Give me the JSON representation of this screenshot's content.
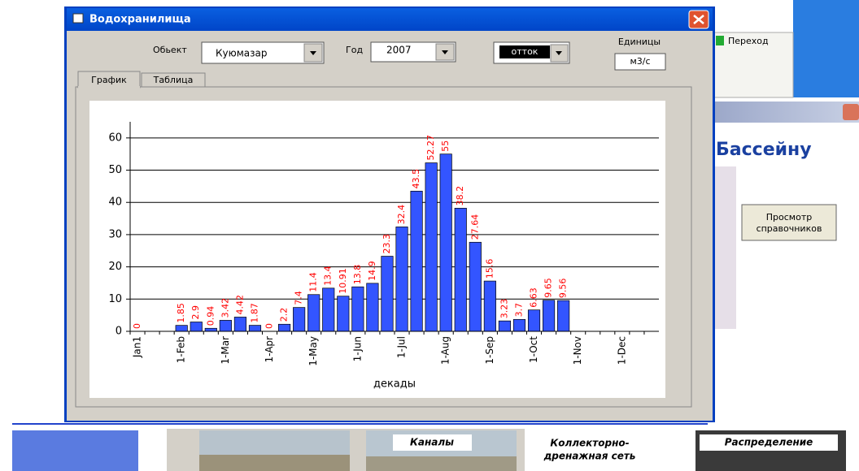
{
  "window": {
    "title": "Водохранилища",
    "object_label": "Обьект",
    "object_value": "Куюмазар",
    "year_label": "Год",
    "year_value": "2007",
    "mode_value": "отток",
    "units_label": "Единицы",
    "units_value": "м3/с",
    "tabs": [
      "График",
      "Таблица"
    ]
  },
  "background": {
    "goto_button": "Переход",
    "basin_heading": "Бассейну",
    "reference_button": [
      "Просмотр",
      "справочников"
    ],
    "canals_tile": "Каналы",
    "drainage_tile": [
      "Коллекторно-",
      "дренажная сеть"
    ],
    "distribution_tile": "Распределение"
  },
  "chart_data": {
    "type": "bar",
    "xlabel": "декады",
    "categories": [
      "Jan1",
      null,
      null,
      "1-Feb",
      null,
      null,
      "1-Mar",
      null,
      null,
      "1-Apr",
      null,
      null,
      "1-May",
      null,
      null,
      "1-Jun",
      null,
      null,
      "1-Jul",
      null,
      null,
      "1-Aug",
      null,
      null,
      "1-Sep",
      null,
      null,
      "1-Oct",
      null,
      null,
      "1-Nov",
      null,
      null,
      "1-Dec",
      null,
      null
    ],
    "values": [
      0,
      null,
      null,
      1.85,
      2.9,
      0.94,
      3.42,
      4.42,
      1.87,
      0,
      2.2,
      7.4,
      11.4,
      13.4,
      10.91,
      13.8,
      14.9,
      23.3,
      32.4,
      43.5,
      52.27,
      55,
      38.2,
      27.64,
      15.6,
      3.23,
      3.7,
      6.63,
      9.65,
      9.56,
      null,
      null,
      null,
      null,
      null,
      null
    ],
    "color": "#3355ff",
    "label_color": "#ff0000",
    "ylim": [
      0,
      65
    ],
    "yticks": [
      0,
      10,
      20,
      30,
      40,
      50,
      60
    ],
    "grid": true
  }
}
